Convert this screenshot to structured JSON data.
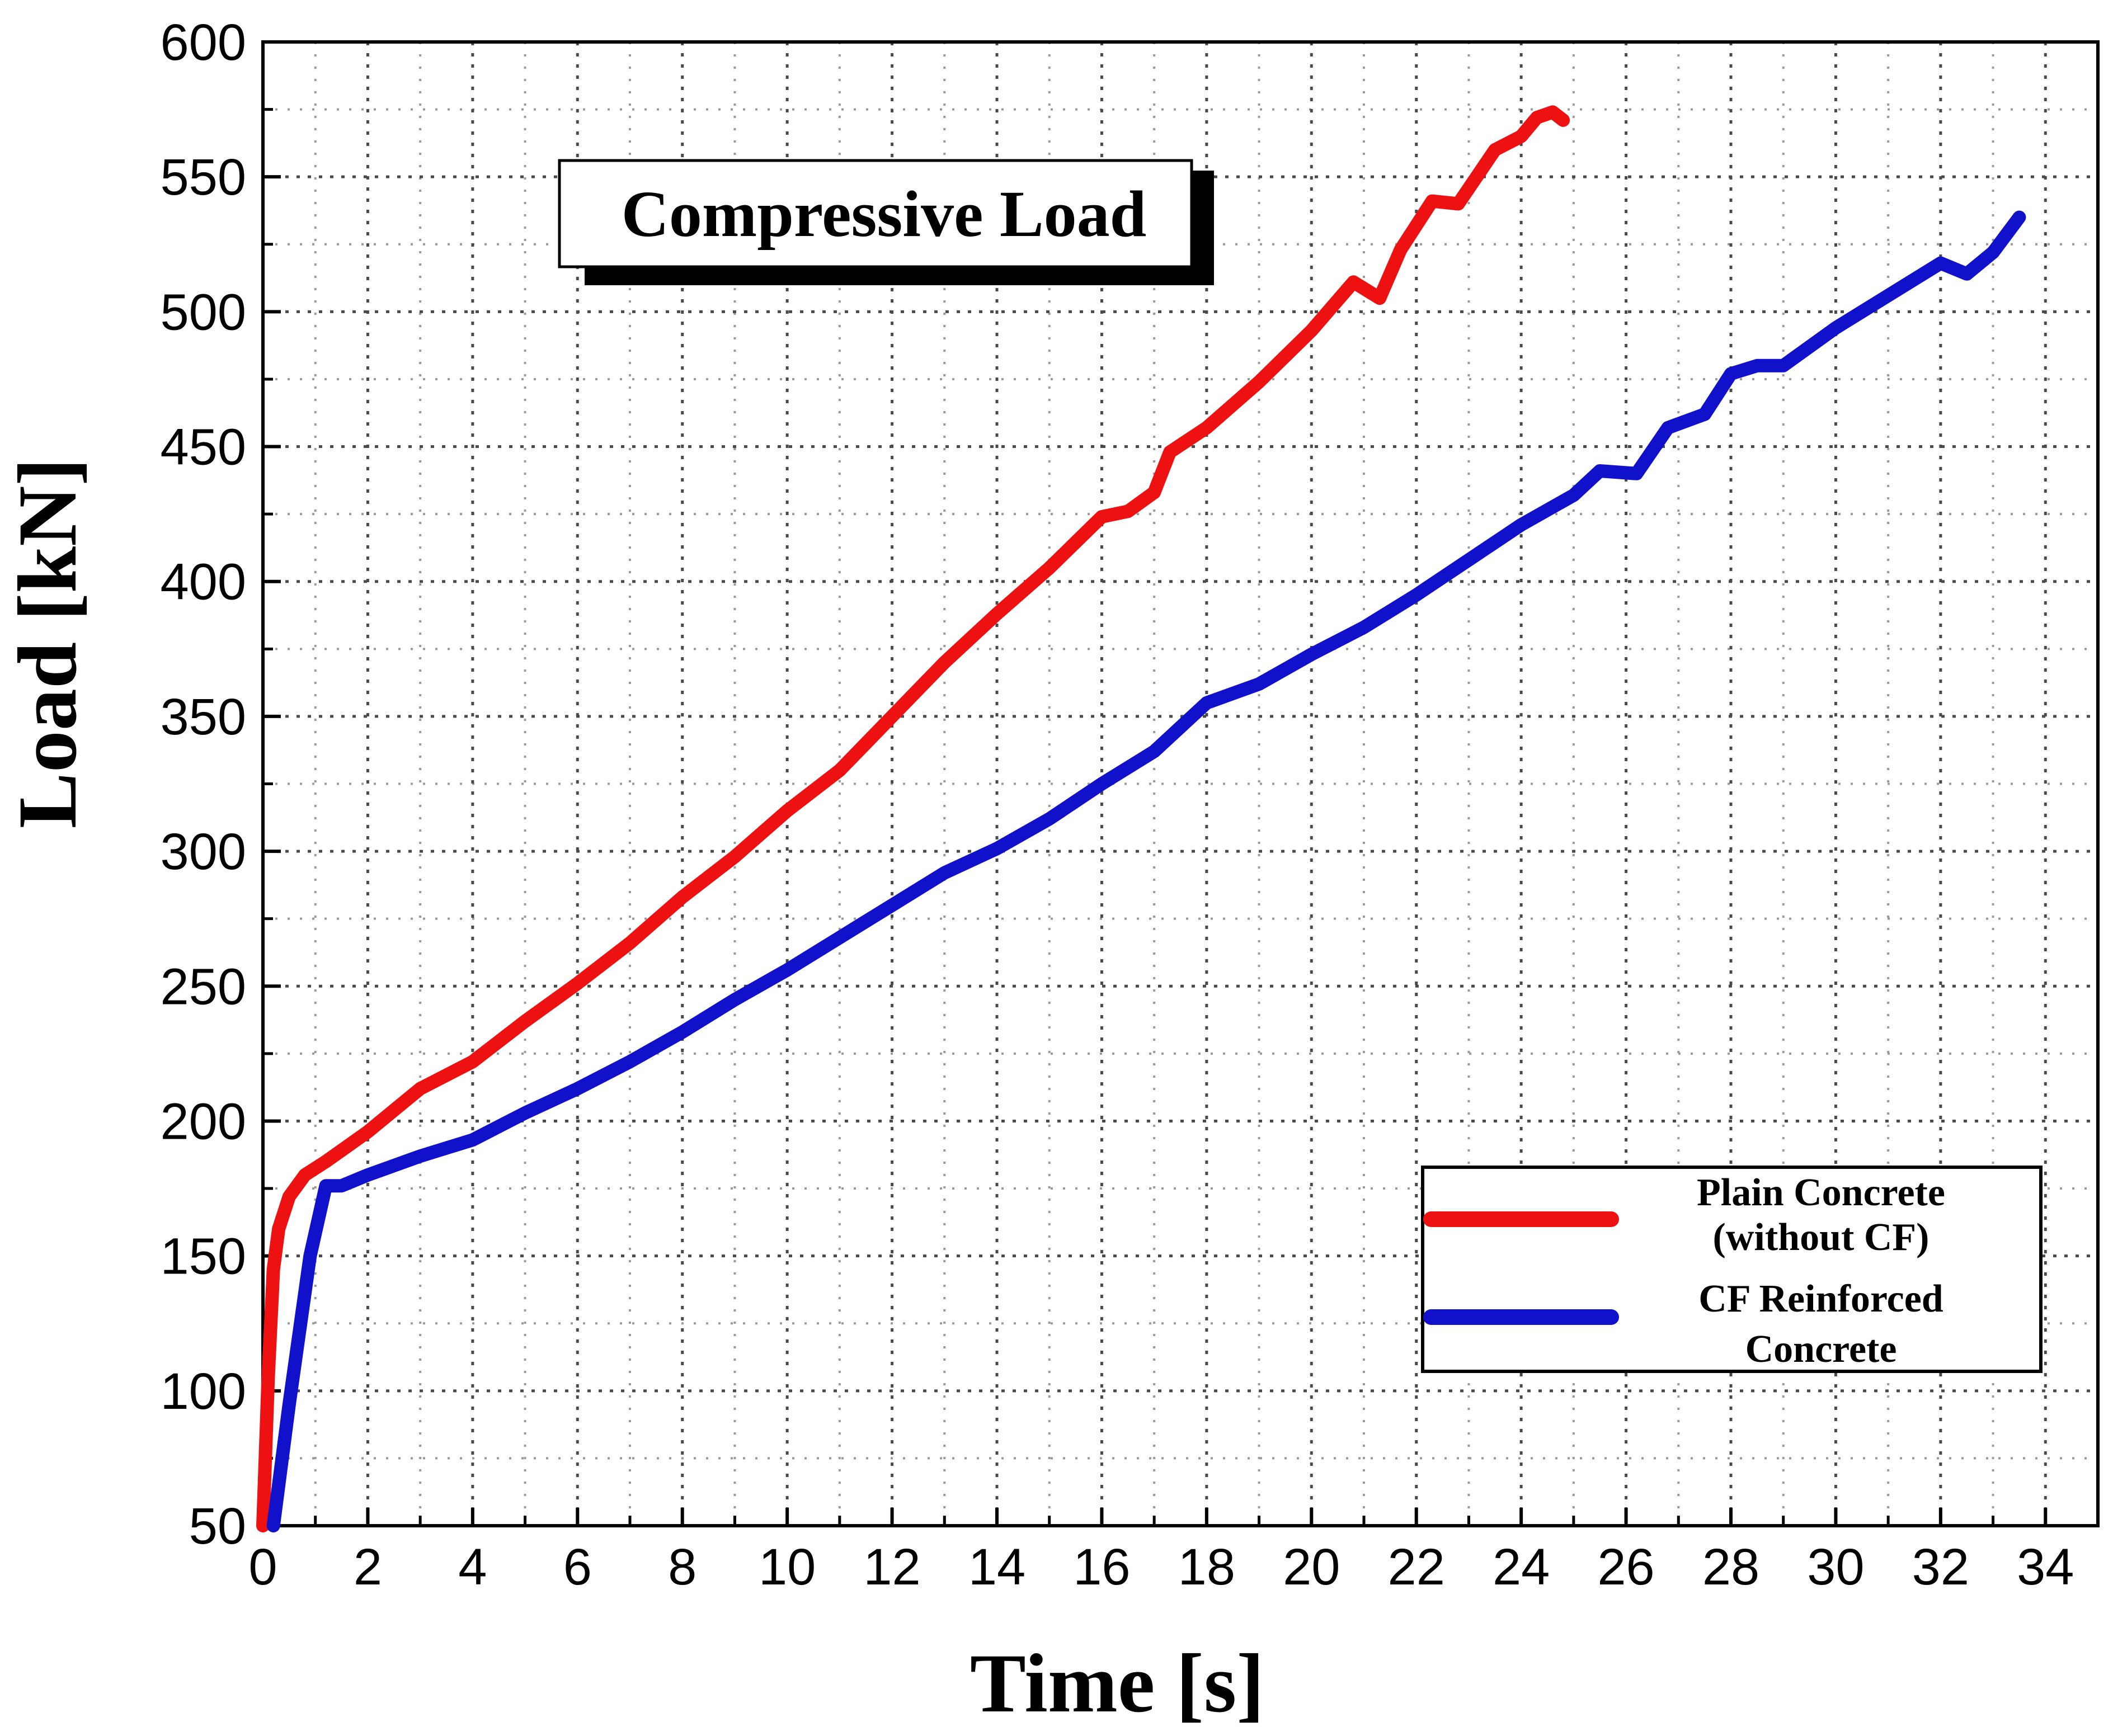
{
  "chart_data": {
    "type": "line",
    "title": "Compressive Load",
    "xlabel": "Time [s]",
    "ylabel": "Load [kN]",
    "xlim": [
      0,
      35
    ],
    "ylim": [
      50,
      600
    ],
    "xticks": [
      0,
      2,
      4,
      6,
      8,
      10,
      12,
      14,
      16,
      18,
      20,
      22,
      24,
      26,
      28,
      30,
      32,
      34
    ],
    "yticks": [
      50,
      100,
      150,
      200,
      250,
      300,
      350,
      400,
      450,
      500,
      550,
      600
    ],
    "grid": true,
    "legend_position": "bottom-right",
    "series": [
      {
        "name": "Plain Concrete (without CF)",
        "legend_lines": [
          "Plain Concrete",
          "(without CF)"
        ],
        "color": "#ee1111",
        "points": [
          [
            0.0,
            50
          ],
          [
            0.1,
            105
          ],
          [
            0.2,
            145
          ],
          [
            0.3,
            160
          ],
          [
            0.5,
            172
          ],
          [
            0.8,
            180
          ],
          [
            1.2,
            185
          ],
          [
            2.0,
            196
          ],
          [
            3.0,
            212
          ],
          [
            4.0,
            222
          ],
          [
            5.0,
            237
          ],
          [
            6.0,
            251
          ],
          [
            7.0,
            266
          ],
          [
            8.0,
            283
          ],
          [
            9.0,
            298
          ],
          [
            10.0,
            315
          ],
          [
            11.0,
            330
          ],
          [
            12.0,
            350
          ],
          [
            13.0,
            370
          ],
          [
            14.0,
            388
          ],
          [
            15.0,
            405
          ],
          [
            16.0,
            424
          ],
          [
            16.5,
            426
          ],
          [
            17.0,
            433
          ],
          [
            17.3,
            448
          ],
          [
            18.0,
            457
          ],
          [
            19.0,
            474
          ],
          [
            20.0,
            493
          ],
          [
            20.8,
            511
          ],
          [
            21.3,
            505
          ],
          [
            21.7,
            523
          ],
          [
            22.3,
            541
          ],
          [
            22.8,
            540
          ],
          [
            23.5,
            560
          ],
          [
            24.0,
            565
          ],
          [
            24.3,
            572
          ],
          [
            24.6,
            574
          ],
          [
            24.8,
            571
          ]
        ]
      },
      {
        "name": "CF Reinforced Concrete",
        "legend_lines": [
          "CF Reinforced",
          "Concrete"
        ],
        "color": "#1111cc",
        "points": [
          [
            0.2,
            50
          ],
          [
            0.5,
            95
          ],
          [
            0.9,
            150
          ],
          [
            1.2,
            176
          ],
          [
            1.5,
            176
          ],
          [
            2.0,
            180
          ],
          [
            3.0,
            187
          ],
          [
            4.0,
            193
          ],
          [
            5.0,
            203
          ],
          [
            6.0,
            212
          ],
          [
            7.0,
            222
          ],
          [
            8.0,
            233
          ],
          [
            9.0,
            245
          ],
          [
            10.0,
            256
          ],
          [
            11.0,
            268
          ],
          [
            12.0,
            280
          ],
          [
            13.0,
            292
          ],
          [
            14.0,
            301
          ],
          [
            15.0,
            312
          ],
          [
            16.0,
            325
          ],
          [
            17.0,
            337
          ],
          [
            18.0,
            355
          ],
          [
            19.0,
            362
          ],
          [
            20.0,
            373
          ],
          [
            21.0,
            383
          ],
          [
            22.0,
            395
          ],
          [
            23.0,
            408
          ],
          [
            24.0,
            421
          ],
          [
            25.0,
            432
          ],
          [
            25.5,
            441
          ],
          [
            26.2,
            440
          ],
          [
            26.8,
            457
          ],
          [
            27.5,
            462
          ],
          [
            28.0,
            477
          ],
          [
            28.5,
            480
          ],
          [
            29.0,
            480
          ],
          [
            30.0,
            494
          ],
          [
            31.0,
            506
          ],
          [
            32.0,
            518
          ],
          [
            32.5,
            514
          ],
          [
            33.0,
            522
          ],
          [
            33.5,
            535
          ]
        ]
      }
    ]
  }
}
